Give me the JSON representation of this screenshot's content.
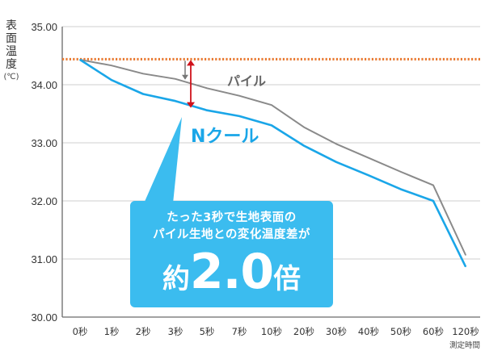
{
  "chart_data": {
    "type": "line",
    "ylabel_chars": [
      "表",
      "面",
      "温",
      "度"
    ],
    "ylabel_unit": "(℃)",
    "xlabel": "測定時間",
    "ylim": [
      30.0,
      35.0
    ],
    "yticks": [
      "35.00",
      "34.00",
      "33.00",
      "32.00",
      "31.00",
      "30.00"
    ],
    "categories": [
      "0秒",
      "1秒",
      "2秒",
      "3秒",
      "5秒",
      "7秒",
      "10秒",
      "20秒",
      "30秒",
      "40秒",
      "50秒",
      "60秒",
      "120秒"
    ],
    "series": [
      {
        "name": "パイル",
        "color": "#8a8a8a",
        "values": [
          34.43,
          34.33,
          34.19,
          34.1,
          33.94,
          33.81,
          33.65,
          33.27,
          32.98,
          32.74,
          32.5,
          32.27,
          31.07
        ]
      },
      {
        "name": "Nクール",
        "color": "#1aa6e8",
        "values": [
          34.43,
          34.08,
          33.84,
          33.72,
          33.56,
          33.46,
          33.3,
          32.95,
          32.67,
          32.44,
          32.2,
          32.0,
          30.87
        ]
      }
    ],
    "reference_line": {
      "value": 34.44,
      "color": "#e8772e"
    },
    "grid": true
  },
  "callout": {
    "line1": "たった3秒で生地表面の",
    "line2": "パイル生地との変化温度差が",
    "prefix": "約",
    "value": "2.0",
    "suffix": "倍"
  },
  "colors": {
    "callout_bg": "#3bbcef",
    "arrow": "#d0121b"
  }
}
